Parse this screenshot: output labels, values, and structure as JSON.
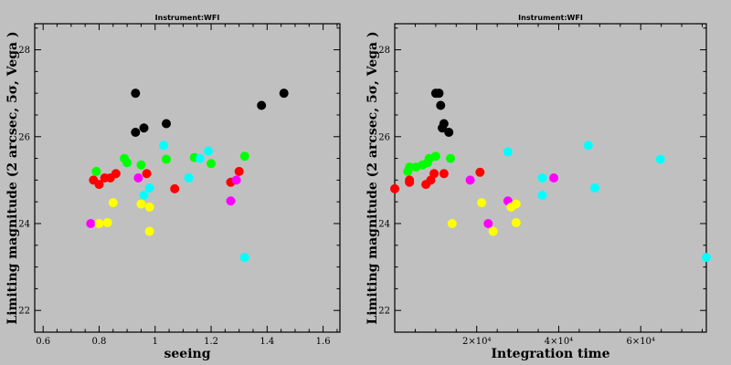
{
  "chart_data": [
    {
      "type": "scatter",
      "title": "Instrument:WFI",
      "xlabel": "seeing",
      "ylabel": "Limiting magnitude (2 arcsec, 5σ, Vega )",
      "xlim": [
        0.57,
        1.66
      ],
      "ylim": [
        21.5,
        28.6
      ],
      "xticks": [
        0.6,
        0.8,
        1,
        1.2,
        1.4,
        1.6
      ],
      "xtick_labels": [
        "0.6",
        "0.8",
        "1",
        "1.2",
        "1.4",
        "1.6"
      ],
      "yticks": [
        22,
        24,
        26,
        28
      ],
      "ytick_labels": [
        "22",
        "24",
        "26",
        "28"
      ],
      "series": [
        {
          "color": "#000000",
          "points": [
            [
              0.93,
              27.0
            ],
            [
              0.93,
              26.1
            ],
            [
              0.96,
              26.2
            ],
            [
              1.04,
              26.3
            ],
            [
              1.38,
              26.72
            ],
            [
              1.46,
              27.0
            ]
          ]
        },
        {
          "color": "#00ff00",
          "points": [
            [
              0.79,
              25.2
            ],
            [
              0.89,
              25.5
            ],
            [
              0.9,
              25.4
            ],
            [
              0.95,
              25.35
            ],
            [
              1.04,
              25.48
            ],
            [
              1.14,
              25.52
            ],
            [
              1.2,
              25.38
            ],
            [
              1.32,
              25.55
            ]
          ]
        },
        {
          "color": "#ff0000",
          "points": [
            [
              0.78,
              25.0
            ],
            [
              0.8,
              24.9
            ],
            [
              0.82,
              25.05
            ],
            [
              0.84,
              25.05
            ],
            [
              0.86,
              25.15
            ],
            [
              0.97,
              25.15
            ],
            [
              1.07,
              24.8
            ],
            [
              1.27,
              24.95
            ],
            [
              1.3,
              25.2
            ]
          ]
        },
        {
          "color": "#00ffff",
          "points": [
            [
              0.96,
              24.65
            ],
            [
              0.98,
              24.82
            ],
            [
              1.03,
              25.8
            ],
            [
              1.12,
              25.05
            ],
            [
              1.16,
              25.5
            ],
            [
              1.19,
              25.67
            ],
            [
              1.32,
              23.22
            ]
          ]
        },
        {
          "color": "#ff00ff",
          "points": [
            [
              0.77,
              24.0
            ],
            [
              0.94,
              25.05
            ],
            [
              1.27,
              24.52
            ],
            [
              1.29,
              25.0
            ]
          ]
        },
        {
          "color": "#ffff00",
          "points": [
            [
              0.8,
              24.0
            ],
            [
              0.83,
              24.02
            ],
            [
              0.85,
              24.48
            ],
            [
              0.95,
              24.45
            ],
            [
              0.98,
              23.82
            ],
            [
              0.98,
              24.38
            ]
          ]
        }
      ]
    },
    {
      "type": "scatter",
      "title": "Instrument:WFI",
      "xlabel": "Integration time",
      "ylabel": "Limiting magnitude (2 arcsec, 5σ, Vega )",
      "xlim": [
        0,
        76000
      ],
      "ylim": [
        21.5,
        28.6
      ],
      "xticks": [
        20000,
        40000,
        60000
      ],
      "xtick_labels": [
        "2×10⁴",
        "4×10⁴",
        "6×10⁴"
      ],
      "yticks": [
        22,
        24,
        26,
        28
      ],
      "ytick_labels": [
        "22",
        "24",
        "26",
        "28"
      ],
      "series": [
        {
          "color": "#000000",
          "points": [
            [
              10000,
              27.0
            ],
            [
              10800,
              27.0
            ],
            [
              11200,
              26.72
            ],
            [
              11600,
              26.2
            ],
            [
              12000,
              26.3
            ],
            [
              13200,
              26.1
            ]
          ]
        },
        {
          "color": "#00ff00",
          "points": [
            [
              3200,
              25.2
            ],
            [
              3600,
              25.3
            ],
            [
              5200,
              25.3
            ],
            [
              6800,
              25.35
            ],
            [
              8000,
              25.4
            ],
            [
              8400,
              25.5
            ],
            [
              10000,
              25.55
            ],
            [
              13600,
              25.5
            ]
          ]
        },
        {
          "color": "#ff0000",
          "points": [
            [
              0,
              24.8
            ],
            [
              3600,
              25.0
            ],
            [
              3600,
              24.95
            ],
            [
              7600,
              24.9
            ],
            [
              8800,
              25.0
            ],
            [
              9600,
              25.15
            ],
            [
              12000,
              25.15
            ],
            [
              20800,
              25.18
            ]
          ]
        },
        {
          "color": "#00ffff",
          "points": [
            [
              27600,
              25.65
            ],
            [
              36000,
              25.05
            ],
            [
              36000,
              24.65
            ],
            [
              47200,
              25.8
            ],
            [
              48800,
              24.82
            ],
            [
              64800,
              25.48
            ],
            [
              76000,
              23.22
            ]
          ]
        },
        {
          "color": "#ff00ff",
          "points": [
            [
              18400,
              25.0
            ],
            [
              22800,
              24.0
            ],
            [
              27600,
              24.52
            ],
            [
              38800,
              25.05
            ]
          ]
        },
        {
          "color": "#ffff00",
          "points": [
            [
              14000,
              24.0
            ],
            [
              21200,
              24.48
            ],
            [
              24000,
              23.82
            ],
            [
              28400,
              24.38
            ],
            [
              29600,
              24.45
            ],
            [
              29600,
              24.02
            ]
          ]
        }
      ]
    }
  ]
}
